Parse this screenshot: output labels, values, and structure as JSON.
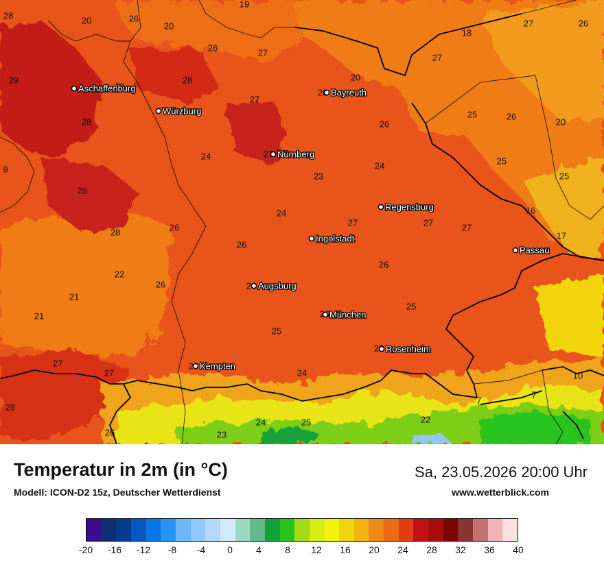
{
  "map": {
    "cities": [
      {
        "name": "Aschaffenburg"
      },
      {
        "name": "Würzburg"
      },
      {
        "name": "Bayreuth"
      },
      {
        "name": "Nürnberg"
      },
      {
        "name": "Regensburg"
      },
      {
        "name": "Ingolstadt"
      },
      {
        "name": "Passau"
      },
      {
        "name": "Augsburg"
      },
      {
        "name": "München"
      },
      {
        "name": "Rosenheim"
      },
      {
        "name": "Kempten"
      }
    ],
    "values": [
      "28",
      "20",
      "26",
      "20",
      "19",
      "18",
      "27",
      "26",
      "26",
      "27",
      "27",
      "20",
      "29",
      "28",
      "28",
      "26",
      "27",
      "25",
      "26",
      "20",
      "28",
      "26",
      "24",
      "27",
      "25",
      "9",
      "28",
      "23",
      "24",
      "25",
      "16",
      "24",
      "27",
      "27",
      "27",
      "28",
      "26",
      "26",
      "17",
      "22",
      "26",
      "26",
      "21",
      "21",
      "25",
      "27",
      "25",
      "24",
      "27",
      "10",
      "28",
      "26",
      "7",
      "7",
      "24",
      "25",
      "22",
      "23",
      "24",
      "26",
      "26",
      "26"
    ]
  },
  "title": "Temperatur in 2m (in °C)",
  "subtitle": "Modell: ICON-D2 15z, Deutscher Wetterdienst",
  "datetime": "Sa, 23.05.2026 20:00 Uhr",
  "website": "www.wetterblick.com",
  "legend": {
    "colors": [
      "#3b0d8a",
      "#0b2f73",
      "#053d8c",
      "#0a57c2",
      "#0677e8",
      "#2a93f7",
      "#6cb6fb",
      "#8ec8fc",
      "#b3dafd",
      "#d4e8fe",
      "#9ad8c0",
      "#62b98a",
      "#14a13a",
      "#28c41a",
      "#a3dc14",
      "#d6ee10",
      "#f2f20e",
      "#f0d40c",
      "#f2b40e",
      "#f18a14",
      "#ec6a14",
      "#e53d12",
      "#c01212",
      "#a80c0c",
      "#780404",
      "#8a3434",
      "#c37070",
      "#f1b4b4",
      "#fde0e0"
    ],
    "ticks": [
      "-20",
      "-16",
      "-12",
      "-8",
      "-4",
      "0",
      "4",
      "8",
      "12",
      "16",
      "20",
      "24",
      "28",
      "32",
      "36",
      "40"
    ]
  }
}
